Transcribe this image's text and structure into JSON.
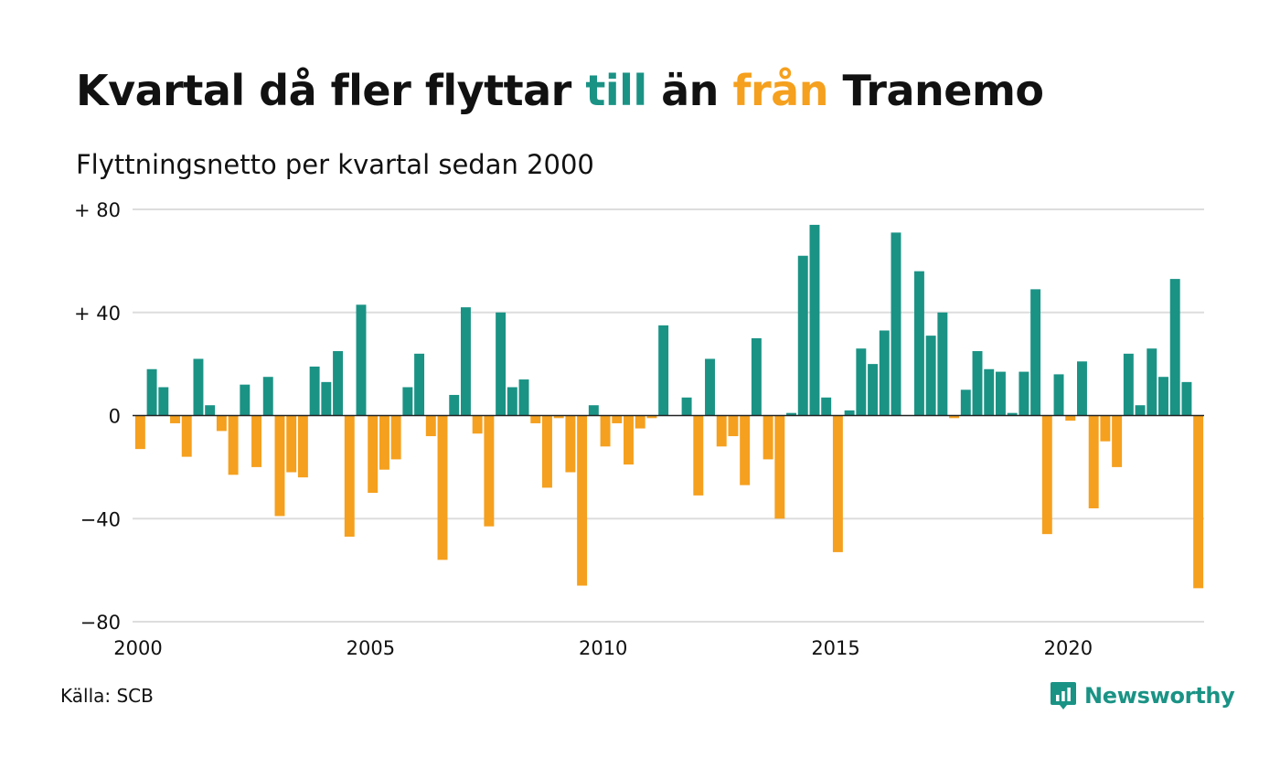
{
  "title": {
    "part1": "Kvartal då fler flyttar ",
    "word_till": "till",
    "part2": " än ",
    "word_fran": "från",
    "part3": " Tranemo"
  },
  "subtitle": "Flyttningsnetto per kvartal sedan 2000",
  "source": "Källa: SCB",
  "brand": "Newsworthy",
  "colors": {
    "positive": "#1a9385",
    "negative": "#f5a01e",
    "grid": "#dddddd",
    "text": "#111111"
  },
  "chart_data": {
    "type": "bar",
    "x_start": "2000 Q1",
    "ylim": [
      -80,
      80
    ],
    "yticks": [
      {
        "value": 80,
        "label": "+ 80"
      },
      {
        "value": 40,
        "label": "+ 40"
      },
      {
        "value": 0,
        "label": "0"
      },
      {
        "value": -40,
        "label": "−40"
      },
      {
        "value": -80,
        "label": "−80"
      }
    ],
    "xticks": [
      {
        "label": "2000",
        "index": 0
      },
      {
        "label": "2005",
        "index": 20
      },
      {
        "label": "2010",
        "index": 40
      },
      {
        "label": "2015",
        "index": 60
      },
      {
        "label": "2020",
        "index": 80
      }
    ],
    "values": [
      -13,
      18,
      11,
      -3,
      -16,
      22,
      4,
      -6,
      -23,
      12,
      -20,
      15,
      -39,
      -22,
      -24,
      19,
      13,
      25,
      -47,
      43,
      -30,
      -21,
      -17,
      11,
      24,
      -8,
      -56,
      8,
      42,
      -7,
      -43,
      40,
      11,
      14,
      -3,
      -28,
      -1,
      -22,
      -66,
      4,
      -12,
      -3,
      -19,
      -5,
      -1,
      35,
      0,
      7,
      -31,
      22,
      -12,
      -8,
      -27,
      30,
      -17,
      -40,
      1,
      62,
      74,
      7,
      -53,
      2,
      26,
      20,
      33,
      71,
      0,
      56,
      31,
      40,
      -1,
      10,
      25,
      18,
      17,
      1,
      17,
      49,
      -46,
      16,
      -2,
      21,
      -36,
      -10,
      -20,
      24,
      4,
      26,
      15,
      53,
      13,
      -67
    ]
  }
}
